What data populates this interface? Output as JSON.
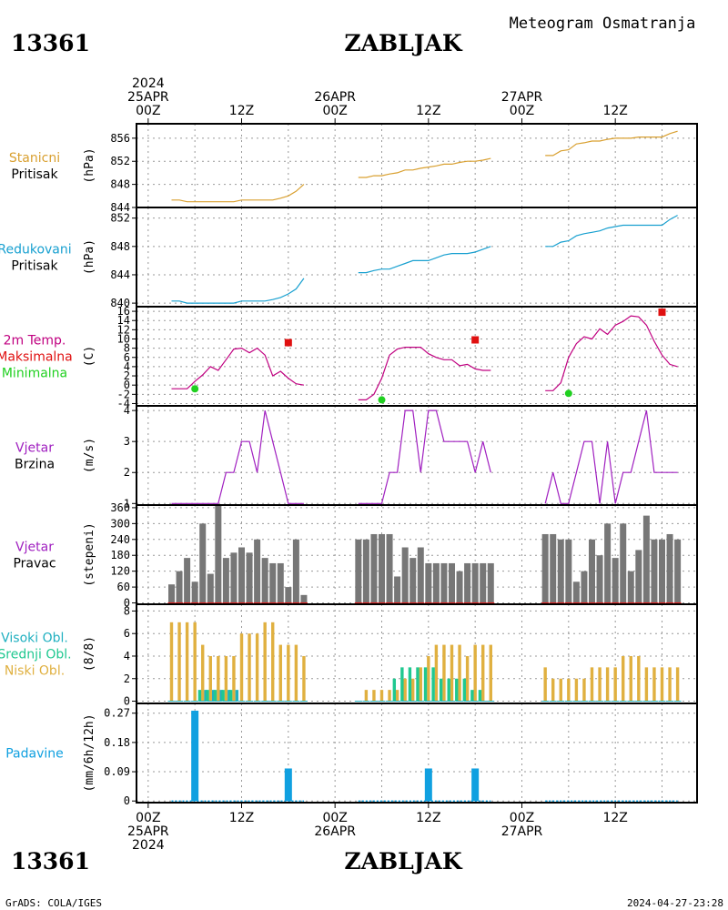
{
  "header": {
    "station_id": "13361",
    "station_name": "ZABLJAK",
    "subtitle": "Meteogram Osmatranja"
  },
  "footer": {
    "station_id": "13361",
    "station_name": "ZABLJAK",
    "credit": "GrADS: COLA/IGES",
    "timestamp": "2024-04-27-23:28"
  },
  "time_axis": {
    "top_labels": [
      {
        "t": 0,
        "lines": [
          "2024",
          "25APR",
          "00Z"
        ]
      },
      {
        "t": 12,
        "lines": [
          "12Z"
        ]
      },
      {
        "t": 24,
        "lines": [
          "26APR",
          "00Z"
        ]
      },
      {
        "t": 36,
        "lines": [
          "12Z"
        ]
      },
      {
        "t": 48,
        "lines": [
          "27APR",
          "00Z"
        ]
      },
      {
        "t": 60,
        "lines": [
          "12Z"
        ]
      }
    ],
    "bottom_labels": [
      {
        "t": 0,
        "lines": [
          "00Z",
          "25APR",
          "2024"
        ]
      },
      {
        "t": 12,
        "lines": [
          "12Z"
        ]
      },
      {
        "t": 24,
        "lines": [
          "00Z",
          "26APR"
        ]
      },
      {
        "t": 36,
        "lines": [
          "12Z"
        ]
      },
      {
        "t": 48,
        "lines": [
          "00Z",
          "27APR"
        ]
      },
      {
        "t": 60,
        "lines": [
          "12Z"
        ]
      }
    ]
  },
  "colors": {
    "station_pressure": "#d9a030",
    "reduced_pressure": "#18a0d0",
    "temperature": "#c00080",
    "tmax": "#e01010",
    "tmin": "#20d020",
    "wind": "#a020c0",
    "wind_dir_bar": "#777777",
    "high_cloud": "#20b0c0",
    "mid_cloud": "#20c890",
    "low_cloud": "#e0b040",
    "precip": "#10a0e0"
  },
  "chart_data": [
    {
      "type": "line",
      "panel": "stanicni",
      "labels": [
        "Stanicni",
        "Pritisak"
      ],
      "ylabel": "(hPa)",
      "yticks": [
        844,
        848,
        852,
        856
      ],
      "ylim": [
        844,
        858.5
      ],
      "series": [
        {
          "segments": [
            {
              "x": [
                3,
                4,
                5,
                6,
                7,
                8,
                9,
                10,
                11,
                12,
                13,
                14,
                15,
                16,
                17,
                18,
                19,
                20
              ],
              "y": [
                845.3,
                845.3,
                845,
                845,
                845,
                845,
                845,
                845,
                845,
                845.3,
                845.3,
                845.3,
                845.3,
                845.3,
                845.6,
                846,
                846.8,
                848
              ]
            },
            {
              "x": [
                27,
                28,
                29,
                30,
                31,
                32,
                33,
                34,
                35,
                36,
                37,
                38,
                39,
                40,
                41,
                42,
                43,
                44
              ],
              "y": [
                849.2,
                849.2,
                849.5,
                849.5,
                849.8,
                850,
                850.5,
                850.5,
                850.8,
                851,
                851.2,
                851.5,
                851.5,
                851.8,
                852,
                852,
                852.2,
                852.5
              ]
            },
            {
              "x": [
                51,
                52,
                53,
                54,
                55,
                56,
                57,
                58,
                59,
                60,
                61,
                62,
                63,
                64,
                65,
                66,
                67,
                68
              ],
              "y": [
                853,
                853,
                853.8,
                854,
                855,
                855.2,
                855.5,
                855.5,
                855.8,
                856,
                856,
                856,
                856.2,
                856.2,
                856.2,
                856.2,
                856.8,
                857.2
              ]
            }
          ]
        }
      ]
    },
    {
      "type": "line",
      "panel": "redukovani",
      "labels": [
        "Redukovani",
        "Pritisak"
      ],
      "ylabel": "(hPa)",
      "yticks": [
        840,
        844,
        848,
        852
      ],
      "ylim": [
        839.5,
        853.5
      ],
      "series": [
        {
          "segments": [
            {
              "x": [
                3,
                4,
                5,
                6,
                7,
                8,
                9,
                10,
                11,
                12,
                13,
                14,
                15,
                16,
                17,
                18,
                19,
                20
              ],
              "y": [
                840.3,
                840.3,
                840,
                840,
                840,
                840,
                840,
                840,
                840,
                840.3,
                840.3,
                840.3,
                840.3,
                840.5,
                840.8,
                841.3,
                842,
                843.5
              ]
            },
            {
              "x": [
                27,
                28,
                29,
                30,
                31,
                32,
                33,
                34,
                35,
                36,
                37,
                38,
                39,
                40,
                41,
                42,
                43,
                44
              ],
              "y": [
                844.3,
                844.3,
                844.6,
                844.8,
                844.8,
                845.2,
                845.6,
                846,
                846,
                846,
                846.4,
                846.8,
                847,
                847,
                847,
                847.2,
                847.6,
                848
              ]
            },
            {
              "x": [
                51,
                52,
                53,
                54,
                55,
                56,
                57,
                58,
                59,
                60,
                61,
                62,
                63,
                64,
                65,
                66,
                67,
                68
              ],
              "y": [
                848,
                848,
                848.6,
                848.8,
                849.5,
                849.8,
                850,
                850.2,
                850.6,
                850.8,
                851,
                851,
                851,
                851,
                851,
                851,
                851.8,
                852.4
              ]
            }
          ]
        }
      ]
    },
    {
      "type": "line",
      "panel": "temperatura",
      "labels": [
        "2m Temp.",
        "Maksimalna",
        "Minimalna"
      ],
      "ylabel": "(C)",
      "yticks": [
        -4,
        -2,
        0,
        2,
        4,
        6,
        8,
        10,
        12,
        14,
        16
      ],
      "ylim": [
        -4.5,
        17
      ],
      "series": [
        {
          "segments": [
            {
              "x": [
                3,
                4,
                5,
                6,
                7,
                8,
                9,
                10,
                11,
                12,
                13,
                14,
                15,
                16,
                17,
                18,
                19,
                20
              ],
              "y": [
                -0.8,
                -0.8,
                -0.8,
                0.8,
                2.2,
                4,
                3.2,
                5.5,
                7.8,
                8,
                7,
                8,
                6.5,
                2,
                3,
                1.5,
                0.3,
                0
              ]
            },
            {
              "x": [
                27,
                28,
                29,
                30,
                31,
                32,
                33,
                34,
                35,
                36,
                37,
                38,
                39,
                40,
                41,
                42,
                43,
                44
              ],
              "y": [
                -3.2,
                -3.2,
                -2,
                1.5,
                6.5,
                7.8,
                8.2,
                8.2,
                8.2,
                6.8,
                6,
                5.5,
                5.5,
                4.2,
                4.5,
                3.5,
                3.2,
                3.2
              ]
            },
            {
              "x": [
                51,
                52,
                53,
                54,
                55,
                56,
                57,
                58,
                59,
                60,
                61,
                62,
                63,
                64,
                65,
                66,
                67,
                68
              ],
              "y": [
                -1.2,
                -1.2,
                0.5,
                6,
                9,
                10.5,
                10,
                12.2,
                11,
                13,
                13.8,
                15,
                14.8,
                13,
                9.5,
                6.5,
                4.5,
                4
              ]
            }
          ]
        }
      ],
      "tmax": [
        {
          "x": 18,
          "y": 9.2
        },
        {
          "x": 42,
          "y": 9.8
        },
        {
          "x": 66,
          "y": 15.8
        }
      ],
      "tmin": [
        {
          "x": 6,
          "y": -0.8
        },
        {
          "x": 30,
          "y": -3.2
        },
        {
          "x": 54,
          "y": -1.8
        }
      ]
    },
    {
      "type": "line",
      "panel": "vjetar_brzina",
      "labels": [
        "Vjetar",
        "Brzina"
      ],
      "ylabel": "(m/s)",
      "yticks": [
        1,
        2,
        3,
        4
      ],
      "ylim": [
        0.95,
        4.15
      ],
      "series": [
        {
          "segments": [
            {
              "x": [
                3,
                4,
                5,
                6,
                7,
                8,
                9,
                10,
                11,
                12,
                13,
                14,
                15,
                16,
                17,
                18,
                19,
                20
              ],
              "y": [
                1,
                1,
                1,
                1,
                1,
                1,
                1,
                2,
                2,
                3,
                3,
                2,
                4,
                3,
                2,
                1,
                1,
                1
              ]
            },
            {
              "x": [
                27,
                28,
                29,
                30,
                31,
                32,
                33,
                34,
                35,
                36,
                37,
                38,
                39,
                40,
                41,
                42,
                43,
                44
              ],
              "y": [
                1,
                1,
                1,
                1,
                2,
                2,
                4,
                4,
                2,
                4,
                4,
                3,
                3,
                3,
                3,
                2,
                3,
                2
              ]
            },
            {
              "x": [
                51,
                52,
                53,
                54,
                55,
                56,
                57,
                58,
                59,
                60,
                61,
                62,
                63,
                64,
                65,
                66,
                67,
                68
              ],
              "y": [
                1,
                2,
                1,
                1,
                2,
                3,
                3,
                1,
                3,
                1,
                2,
                2,
                3,
                4,
                2,
                2,
                2,
                2
              ]
            }
          ]
        }
      ]
    },
    {
      "type": "bar",
      "panel": "vjetar_pravac",
      "labels": [
        "Vjetar",
        "Pravac"
      ],
      "ylabel": "(stepeni)",
      "yticks": [
        0,
        60,
        120,
        180,
        240,
        300,
        360
      ],
      "ylim": [
        -5,
        370
      ],
      "x": [
        3,
        4,
        5,
        6,
        7,
        8,
        9,
        10,
        11,
        12,
        13,
        14,
        15,
        16,
        17,
        18,
        19,
        20,
        27,
        28,
        29,
        30,
        31,
        32,
        33,
        34,
        35,
        36,
        37,
        38,
        39,
        40,
        41,
        42,
        43,
        44,
        51,
        52,
        53,
        54,
        55,
        56,
        57,
        58,
        59,
        60,
        61,
        62,
        63,
        64,
        65,
        66,
        67,
        68
      ],
      "values": [
        70,
        120,
        170,
        80,
        300,
        110,
        370,
        170,
        190,
        210,
        190,
        240,
        170,
        150,
        150,
        60,
        240,
        30,
        240,
        240,
        260,
        260,
        260,
        100,
        210,
        170,
        210,
        150,
        150,
        150,
        150,
        120,
        150,
        150,
        150,
        150,
        260,
        260,
        240,
        240,
        80,
        120,
        240,
        180,
        300,
        170,
        300,
        120,
        200,
        330,
        240,
        240,
        260,
        240
      ]
    },
    {
      "type": "bar",
      "panel": "oblacnost",
      "labels": [
        "Visoki Obl.",
        "Srednji Obl.",
        "Niski Obl."
      ],
      "ylabel": "(8/8)",
      "yticks": [
        0,
        2,
        4,
        6,
        8
      ],
      "ylim": [
        -0.2,
        8.6
      ],
      "x": [
        3,
        4,
        5,
        6,
        7,
        8,
        9,
        10,
        11,
        12,
        13,
        14,
        15,
        16,
        17,
        18,
        19,
        20,
        27,
        28,
        29,
        30,
        31,
        32,
        33,
        34,
        35,
        36,
        37,
        38,
        39,
        40,
        41,
        42,
        43,
        44,
        51,
        52,
        53,
        54,
        55,
        56,
        57,
        58,
        59,
        60,
        61,
        62,
        63,
        64,
        65,
        66,
        67,
        68
      ],
      "series": [
        {
          "name": "Visoki Obl.",
          "values": [
            0,
            0,
            0,
            0,
            1,
            1,
            1,
            1,
            1,
            0,
            0,
            0,
            0,
            0,
            0,
            0,
            0,
            0,
            0,
            0,
            0,
            0,
            0,
            0,
            0,
            0,
            0,
            0,
            0,
            0,
            0,
            0,
            0,
            0,
            0,
            0,
            0,
            0,
            0,
            0,
            0,
            0,
            0,
            0,
            0,
            0,
            0,
            0,
            0,
            0,
            0,
            0,
            0,
            0
          ]
        },
        {
          "name": "Srednji Obl.",
          "values": [
            0,
            0,
            0,
            0,
            1,
            1,
            1,
            1,
            1,
            0,
            0,
            0,
            0,
            0,
            0,
            0,
            0,
            0,
            0,
            0,
            0,
            0,
            0,
            2,
            3,
            3,
            3,
            3,
            3,
            2,
            2,
            2,
            2,
            1,
            1,
            0,
            0,
            0,
            0,
            0,
            0,
            0,
            0,
            0,
            0,
            0,
            0,
            0,
            0,
            0,
            0,
            0,
            0,
            0
          ]
        },
        {
          "name": "Niski Obl.",
          "values": [
            7,
            7,
            7,
            7,
            5,
            4,
            4,
            4,
            4,
            6,
            6,
            6,
            7,
            7,
            5,
            5,
            5,
            4,
            0,
            1,
            1,
            1,
            1,
            1,
            2,
            2,
            3,
            4,
            5,
            5,
            5,
            5,
            4,
            5,
            5,
            5,
            3,
            2,
            2,
            2,
            2,
            2,
            3,
            3,
            3,
            3,
            4,
            4,
            4,
            3,
            3,
            3,
            3,
            3
          ]
        }
      ]
    },
    {
      "type": "bar",
      "panel": "padavine",
      "labels": [
        "Padavine"
      ],
      "ylabel": "(mm/6h/12h)",
      "yticks": [
        0,
        0.09,
        0.18,
        0.27
      ],
      "ytick_labels": [
        "0",
        "0.09",
        "0.18",
        "0.27"
      ],
      "ylim": [
        -0.005,
        0.3
      ],
      "x": [
        6,
        18,
        36,
        42
      ],
      "values": [
        0.3,
        0.1,
        0.1,
        0.1
      ]
    }
  ]
}
